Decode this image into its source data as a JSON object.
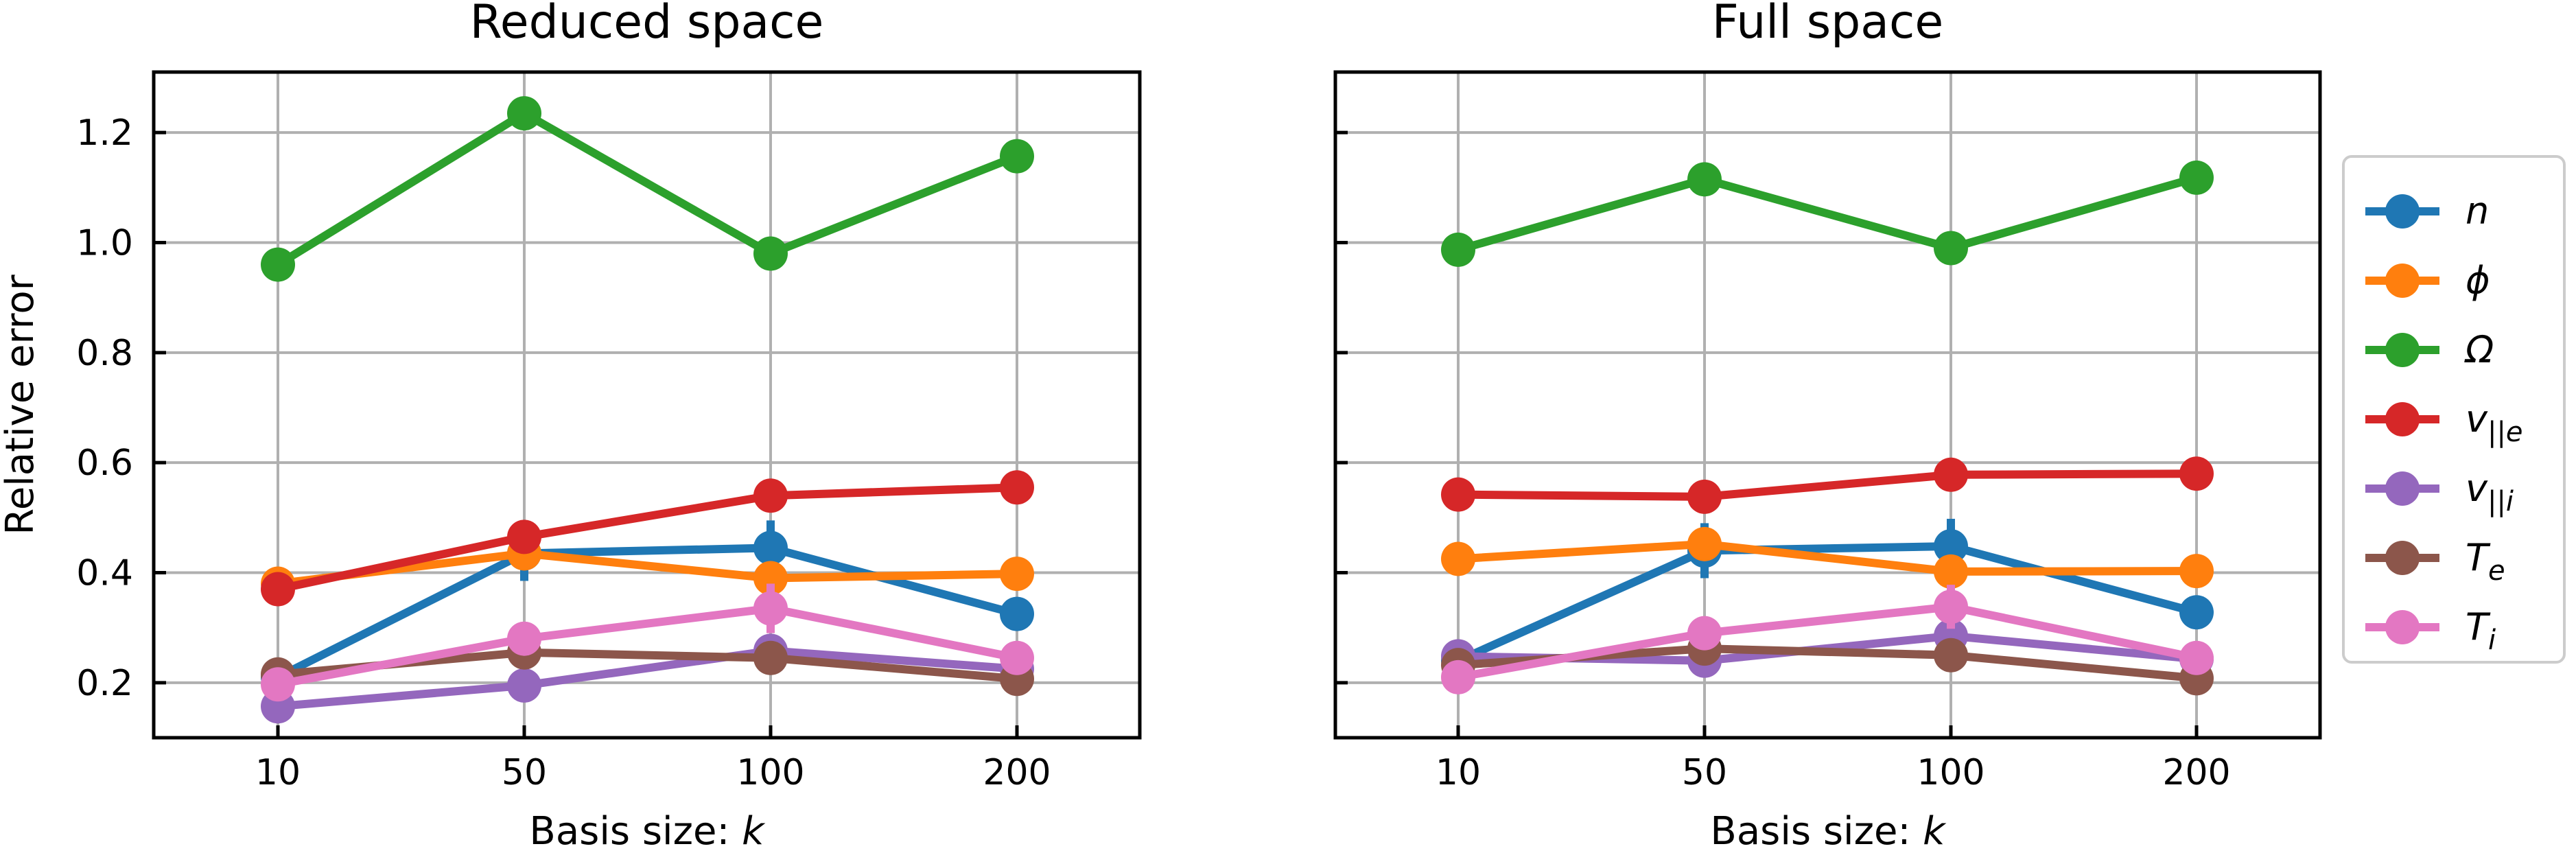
{
  "chart_data": [
    {
      "type": "line",
      "title": "Reduced space",
      "xlabel_text": "Basis size: ",
      "xlabel_var": "k",
      "ylabel": "Relative error",
      "categories": [
        "10",
        "50",
        "100",
        "200"
      ],
      "yticks": [
        "0.2",
        "0.4",
        "0.6",
        "0.8",
        "1.0",
        "1.2"
      ],
      "ylim": [
        0.1,
        1.31
      ],
      "grid": true,
      "series": [
        {
          "name": "n",
          "color": "#1f77b4",
          "values": [
            0.21,
            0.435,
            0.445,
            0.325
          ],
          "err": [
            0.0,
            0.05,
            0.05,
            0.0
          ]
        },
        {
          "name": "ϕ",
          "color": "#ff7f0e",
          "values": [
            0.38,
            0.435,
            0.39,
            0.398
          ],
          "err": [
            0,
            0,
            0,
            0
          ]
        },
        {
          "name": "Ω",
          "color": "#2ca02c",
          "values": [
            0.96,
            1.235,
            0.98,
            1.157
          ],
          "err": [
            0,
            0,
            0,
            0
          ]
        },
        {
          "name": "v||e",
          "color": "#d62728",
          "values": [
            0.37,
            0.465,
            0.54,
            0.555
          ],
          "err": [
            0,
            0,
            0,
            0
          ]
        },
        {
          "name": "v||i",
          "color": "#9467bd",
          "values": [
            0.157,
            0.195,
            0.258,
            0.225
          ],
          "err": [
            0,
            0,
            0,
            0
          ]
        },
        {
          "name": "Te",
          "color": "#8c564b",
          "values": [
            0.215,
            0.255,
            0.245,
            0.207
          ],
          "err": [
            0,
            0,
            0,
            0
          ]
        },
        {
          "name": "Ti",
          "color": "#e377c2",
          "values": [
            0.197,
            0.28,
            0.335,
            0.245
          ],
          "err": [
            0,
            0,
            0.045,
            0
          ]
        }
      ]
    },
    {
      "type": "line",
      "title": "Full space",
      "xlabel_text": "Basis size: ",
      "xlabel_var": "k",
      "ylabel": "",
      "categories": [
        "10",
        "50",
        "100",
        "200"
      ],
      "yticks": [
        "0.2",
        "0.4",
        "0.6",
        "0.8",
        "1.0",
        "1.2"
      ],
      "ylim": [
        0.1,
        1.31
      ],
      "grid": true,
      "series": [
        {
          "name": "n",
          "color": "#1f77b4",
          "values": [
            0.24,
            0.44,
            0.448,
            0.328
          ],
          "err": [
            0.0,
            0.05,
            0.05,
            0.0
          ]
        },
        {
          "name": "ϕ",
          "color": "#ff7f0e",
          "values": [
            0.425,
            0.452,
            0.402,
            0.403
          ],
          "err": [
            0,
            0,
            0,
            0
          ]
        },
        {
          "name": "Ω",
          "color": "#2ca02c",
          "values": [
            0.987,
            1.115,
            0.99,
            1.118
          ],
          "err": [
            0,
            0,
            0,
            0
          ]
        },
        {
          "name": "v||e",
          "color": "#d62728",
          "values": [
            0.542,
            0.538,
            0.578,
            0.58
          ],
          "err": [
            0,
            0,
            0,
            0
          ]
        },
        {
          "name": "v||i",
          "color": "#9467bd",
          "values": [
            0.248,
            0.24,
            0.285,
            0.243
          ],
          "err": [
            0,
            0,
            0,
            0
          ]
        },
        {
          "name": "Te",
          "color": "#8c564b",
          "values": [
            0.232,
            0.262,
            0.25,
            0.208
          ],
          "err": [
            0,
            0,
            0,
            0
          ]
        },
        {
          "name": "Ti",
          "color": "#e377c2",
          "values": [
            0.21,
            0.29,
            0.338,
            0.245
          ],
          "err": [
            0,
            0,
            0.04,
            0
          ]
        }
      ]
    }
  ],
  "legend": {
    "placement": "right",
    "entries": [
      {
        "base": "n",
        "sub": "",
        "color": "#1f77b4"
      },
      {
        "base": "ϕ",
        "sub": "",
        "color": "#ff7f0e"
      },
      {
        "base": "Ω",
        "sub": "",
        "color": "#2ca02c"
      },
      {
        "base": "v",
        "sub": "||e",
        "color": "#d62728"
      },
      {
        "base": "v",
        "sub": "||i",
        "color": "#9467bd"
      },
      {
        "base": "T",
        "sub": "e",
        "color": "#8c564b"
      },
      {
        "base": "T",
        "sub": "i",
        "color": "#e377c2"
      }
    ]
  }
}
